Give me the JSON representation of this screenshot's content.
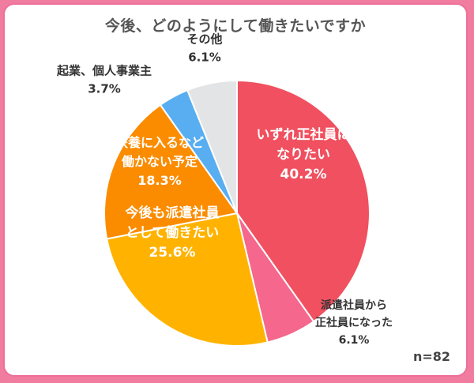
{
  "title": "今後、どのようにして働きたいですか",
  "note": "n=82",
  "chart_data": {
    "type": "pie",
    "title": "今後、どのようにして働きたいですか",
    "n": "n=82",
    "slices": [
      {
        "label_lines": [
          "いずれ正社員に",
          "なりたい"
        ],
        "value": 40.2,
        "value_label": "40.2%",
        "color": "#f0505f"
      },
      {
        "label_lines": [
          "派遣社員から",
          "正社員になった"
        ],
        "value": 6.1,
        "value_label": "6.1%",
        "color": "#f5678c"
      },
      {
        "label_lines": [
          "今後も派遣社員",
          "として働きたい"
        ],
        "value": 25.6,
        "value_label": "25.6%",
        "color": "#ffb300"
      },
      {
        "label_lines": [
          "扶養に入るなど",
          "働かない予定"
        ],
        "value": 18.3,
        "value_label": "18.3%",
        "color": "#fb8c00"
      },
      {
        "label_lines": [
          "起業、個人事業主"
        ],
        "value": 3.7,
        "value_label": "3.7%",
        "color": "#58aef0"
      },
      {
        "label_lines": [
          "その他"
        ],
        "value": 6.1,
        "value_label": "6.1%",
        "color": "#e3e4e6"
      }
    ]
  }
}
